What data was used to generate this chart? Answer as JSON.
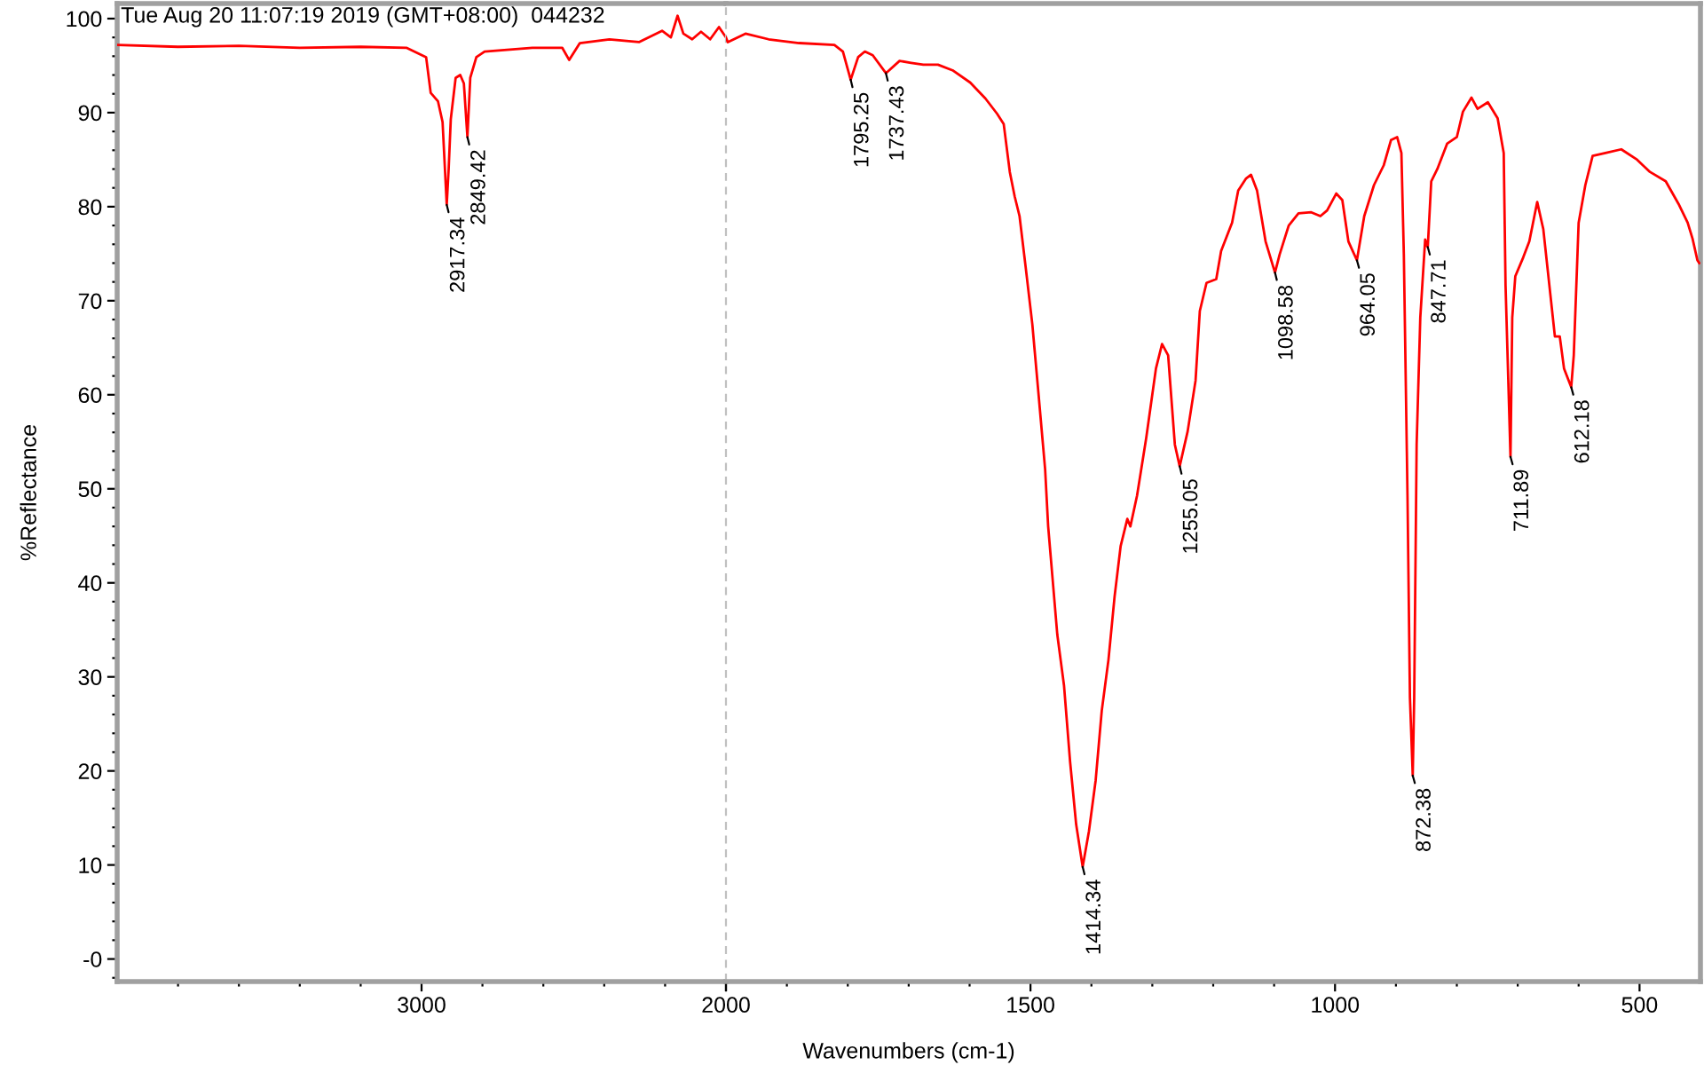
{
  "chart_data": [
    {
      "type": "line",
      "title": "Tue Aug 20 11:07:19 2019 (GMT+08:00)  044232",
      "ylabel": "%Reflectance",
      "x": [
        4000,
        3800,
        3600,
        3400,
        3200,
        3050,
        2985,
        2970,
        2946,
        2931,
        2917.34,
        2911,
        2904,
        2888,
        2873,
        2861,
        2849.42,
        2840,
        2820,
        2793,
        2636,
        2538,
        2515,
        2480,
        2383,
        2286,
        2210,
        2181,
        2159,
        2140,
        2111,
        2082,
        2052,
        2023,
        2000
      ],
      "values": [
        97.2,
        97.0,
        97.1,
        96.9,
        97.0,
        96.9,
        95.9,
        92.1,
        91.2,
        89.0,
        80.2,
        84.0,
        89.3,
        93.7,
        94.0,
        93.1,
        87.4,
        93.7,
        95.9,
        96.5,
        96.9,
        96.9,
        95.6,
        97.4,
        97.8,
        97.5,
        98.7,
        98.0,
        100.3,
        98.4,
        97.8,
        98.6,
        97.8,
        99.1,
        98.0
      ],
      "color": "#ff0000",
      "marker": "none",
      "line_style": "solid",
      "grid": false,
      "xlim": [
        4000,
        2000
      ],
      "xticks": [
        3000,
        2000
      ],
      "ylim": [
        -2.4,
        101.6
      ],
      "yticks": [
        {
          "value": 0,
          "label": "-0"
        },
        10,
        20,
        30,
        40,
        50,
        60,
        70,
        80,
        90,
        100
      ],
      "annotations": [
        {
          "text": "2917.34",
          "x": 2917.34,
          "y": 80.2
        },
        {
          "text": "2849.42",
          "x": 2849.42,
          "y": 87.4
        }
      ]
    },
    {
      "type": "line",
      "xlabel": "Wavenumbers (cm-1)",
      "x": [
        2000,
        1997,
        1968,
        1930,
        1880,
        1822,
        1808,
        1795.25,
        1783,
        1772,
        1759,
        1737.43,
        1715,
        1696,
        1676,
        1652,
        1628,
        1599,
        1574,
        1555,
        1544,
        1534,
        1526,
        1518,
        1508,
        1497,
        1487,
        1476,
        1471,
        1456,
        1445,
        1435,
        1425,
        1414.34,
        1404,
        1393,
        1383,
        1372,
        1362,
        1352,
        1341,
        1336,
        1325,
        1310,
        1294,
        1284,
        1274,
        1263,
        1255.05,
        1242,
        1229,
        1222,
        1211,
        1195,
        1187,
        1169,
        1159,
        1146,
        1138,
        1128,
        1114,
        1098.58,
        1091,
        1076,
        1060,
        1039,
        1024,
        1013,
        998,
        988,
        978,
        964.05,
        952,
        936,
        920,
        908,
        898,
        891,
        887,
        881,
        877,
        872.38,
        870,
        866,
        860,
        852,
        847.71,
        842,
        832,
        816,
        800,
        790,
        776,
        766,
        749,
        733,
        723,
        720,
        711.89,
        709,
        704,
        691,
        681,
        668,
        658,
        648,
        639,
        631,
        624,
        612.18,
        608,
        600,
        589,
        577,
        556,
        530,
        504,
        483,
        457,
        436,
        421,
        413,
        405,
        402
      ],
      "values": [
        98.0,
        97.5,
        98.4,
        97.8,
        97.4,
        97.2,
        96.5,
        93.5,
        95.9,
        96.5,
        96.1,
        94.2,
        95.5,
        95.3,
        95.1,
        95.1,
        94.5,
        93.2,
        91.5,
        89.9,
        88.8,
        83.7,
        81.1,
        79.0,
        73.6,
        67.5,
        60.2,
        52.1,
        46.0,
        34.5,
        29.1,
        21.0,
        14.3,
        9.8,
        13.6,
        19.0,
        26.4,
        31.8,
        38.5,
        43.9,
        46.8,
        46.0,
        49.3,
        55.4,
        62.8,
        65.4,
        64.2,
        54.7,
        52.4,
        56.1,
        61.5,
        68.9,
        71.9,
        72.3,
        75.3,
        78.3,
        81.7,
        83.0,
        83.4,
        81.7,
        76.3,
        73.0,
        74.9,
        78.0,
        79.3,
        79.4,
        79.0,
        79.6,
        81.4,
        80.7,
        76.3,
        74.3,
        79.0,
        82.3,
        84.4,
        87.1,
        87.4,
        85.7,
        74.9,
        49.3,
        27.8,
        19.5,
        27.8,
        54.7,
        68.2,
        76.5,
        75.7,
        82.7,
        84.0,
        86.7,
        87.4,
        90.1,
        91.6,
        90.4,
        91.1,
        89.4,
        85.7,
        71.6,
        53.4,
        68.2,
        72.6,
        74.6,
        76.3,
        80.5,
        77.6,
        71.6,
        66.2,
        66.2,
        62.8,
        60.8,
        64.2,
        78.3,
        82.3,
        85.4,
        85.7,
        86.1,
        85.0,
        83.7,
        82.7,
        80.3,
        78.3,
        76.6,
        74.3,
        74.0
      ],
      "color": "#ff0000",
      "marker": "none",
      "line_style": "solid",
      "grid": false,
      "xlim": [
        2000,
        400
      ],
      "xticks": [
        {
          "value": 2000,
          "label": null
        },
        1500,
        1000,
        500
      ],
      "ylim": [
        -2.4,
        101.6
      ],
      "tick_labels": "x",
      "ref_lines": [
        {
          "axis": "x",
          "value": 2000,
          "color": "#c0c0c0",
          "line_style": "dashed"
        }
      ],
      "annotations": [
        {
          "text": "1795.25",
          "x": 1795.25,
          "y": 93.5
        },
        {
          "text": "1737.43",
          "x": 1737.43,
          "y": 94.2
        },
        {
          "text": "1414.34",
          "x": 1414.34,
          "y": 9.8
        },
        {
          "text": "1255.05",
          "x": 1255.05,
          "y": 52.4
        },
        {
          "text": "1098.58",
          "x": 1098.58,
          "y": 73.0
        },
        {
          "text": "964.05",
          "x": 964.05,
          "y": 74.3
        },
        {
          "text": "872.38",
          "x": 872.38,
          "y": 19.5
        },
        {
          "text": "847.71",
          "x": 847.71,
          "y": 75.7
        },
        {
          "text": "711.89",
          "x": 711.89,
          "y": 53.4
        },
        {
          "text": "612.18",
          "x": 612.18,
          "y": 60.8
        }
      ]
    }
  ]
}
